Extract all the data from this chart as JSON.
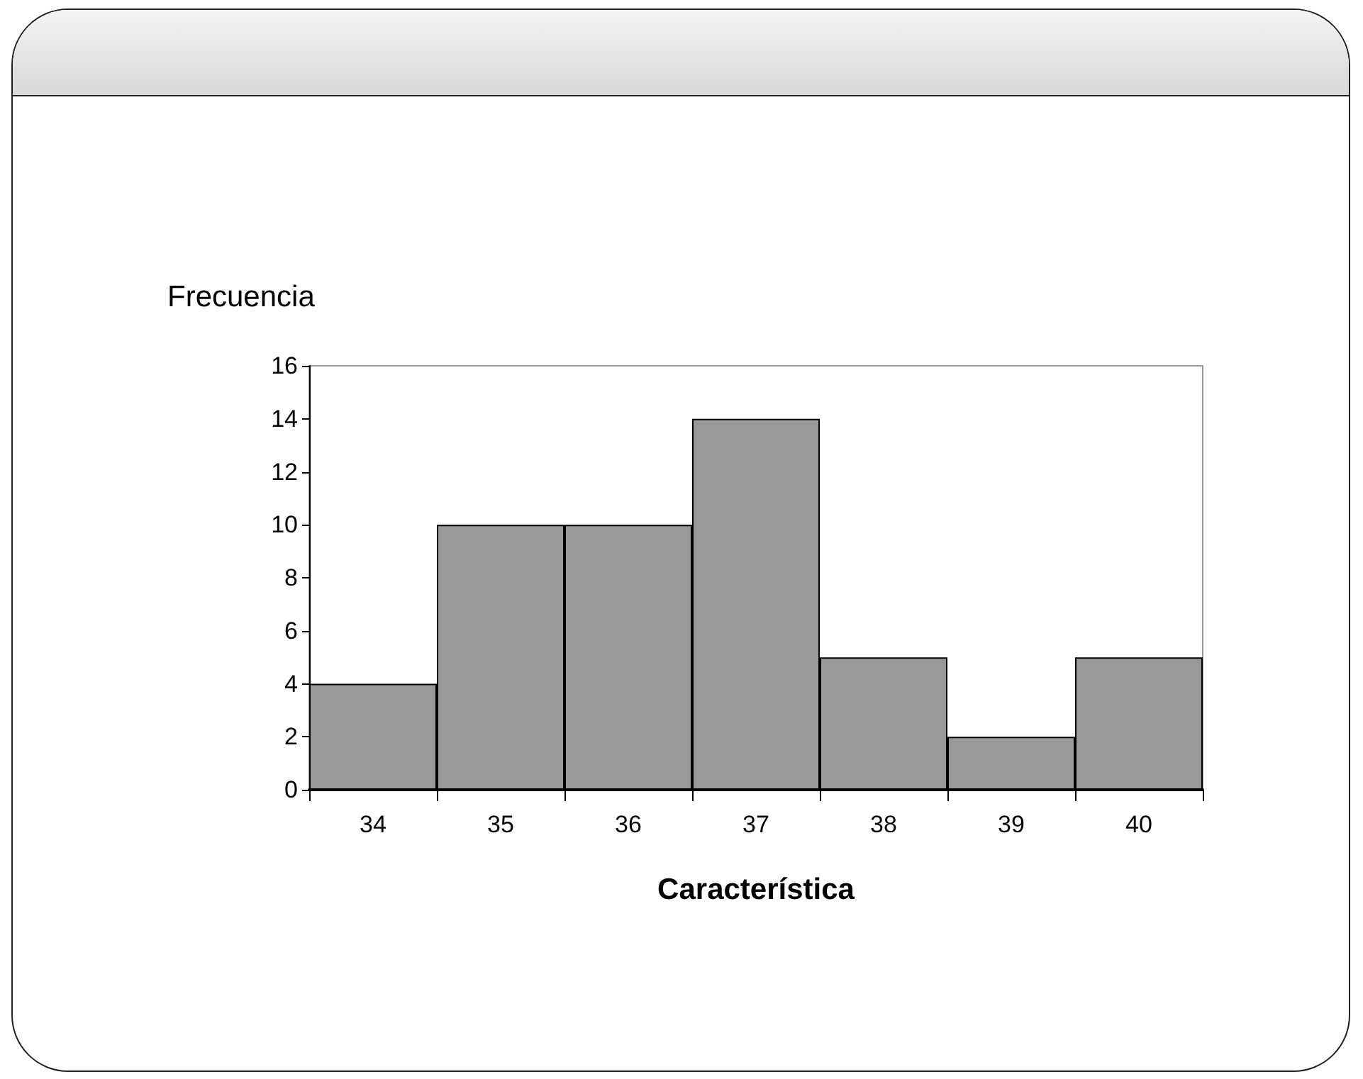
{
  "chart_data": {
    "type": "bar",
    "xlabel": "Característica",
    "ylabel": "Frecuencia",
    "categories": [
      "34",
      "35",
      "36",
      "37",
      "38",
      "39",
      "40"
    ],
    "values": [
      4,
      10,
      10,
      14,
      5,
      2,
      5
    ],
    "color": "#999999",
    "ylim": [
      0,
      16
    ],
    "yticks": [
      0,
      2,
      4,
      6,
      8,
      10,
      12,
      14,
      16
    ],
    "grid": false
  }
}
